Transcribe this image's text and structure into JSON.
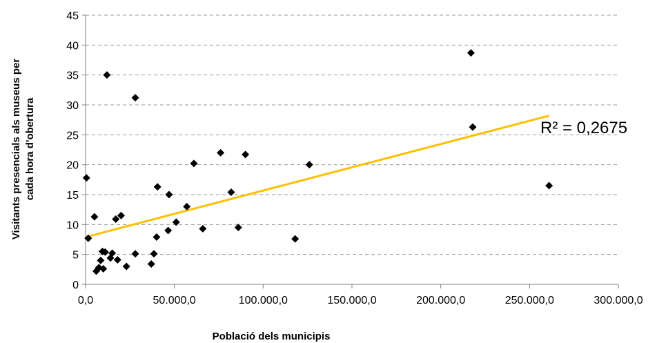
{
  "chart_data": {
    "type": "scatter",
    "title": "",
    "xlabel": "Població dels municipis",
    "ylabel_lines": [
      "Visitants presencials als museus per",
      "cada hora d'obertura"
    ],
    "xlim": [
      0,
      300000
    ],
    "ylim": [
      0,
      45
    ],
    "x_ticks": [
      0,
      50000,
      100000,
      150000,
      200000,
      250000,
      300000
    ],
    "x_tick_labels": [
      "0,0",
      "50.000,0",
      "100.000,0",
      "150.000,0",
      "200.000,0",
      "250.000,0",
      "300.000,0"
    ],
    "y_ticks": [
      0,
      5,
      10,
      15,
      20,
      25,
      30,
      35,
      40,
      45
    ],
    "y_tick_labels": [
      "0",
      "5",
      "10",
      "15",
      "20",
      "25",
      "30",
      "35",
      "40",
      "45"
    ],
    "grid": "horizontal-dashed",
    "marker_color": "#000000",
    "trendline_color": "#FFC000",
    "trendline": {
      "x": [
        0,
        261000
      ],
      "y": [
        7.9,
        28.2
      ]
    },
    "r_squared_label": "R² = 0,2675",
    "points": [
      {
        "x": 500,
        "y": 17.8
      },
      {
        "x": 1500,
        "y": 7.7
      },
      {
        "x": 5000,
        "y": 11.3
      },
      {
        "x": 6000,
        "y": 2.2
      },
      {
        "x": 7500,
        "y": 2.8
      },
      {
        "x": 8500,
        "y": 4.0
      },
      {
        "x": 9500,
        "y": 5.5
      },
      {
        "x": 10000,
        "y": 2.6
      },
      {
        "x": 11000,
        "y": 5.4
      },
      {
        "x": 12000,
        "y": 35.0
      },
      {
        "x": 14000,
        "y": 4.4
      },
      {
        "x": 15000,
        "y": 5.2
      },
      {
        "x": 17000,
        "y": 10.9
      },
      {
        "x": 18000,
        "y": 4.1
      },
      {
        "x": 20000,
        "y": 11.5
      },
      {
        "x": 23000,
        "y": 3.0
      },
      {
        "x": 28000,
        "y": 31.2
      },
      {
        "x": 28000,
        "y": 5.1
      },
      {
        "x": 37000,
        "y": 3.4
      },
      {
        "x": 38500,
        "y": 5.1
      },
      {
        "x": 40000,
        "y": 7.9
      },
      {
        "x": 40500,
        "y": 16.3
      },
      {
        "x": 46500,
        "y": 9.0
      },
      {
        "x": 47000,
        "y": 15.0
      },
      {
        "x": 51000,
        "y": 10.4
      },
      {
        "x": 57000,
        "y": 13.0
      },
      {
        "x": 61000,
        "y": 20.2
      },
      {
        "x": 66000,
        "y": 9.3
      },
      {
        "x": 76000,
        "y": 22.0
      },
      {
        "x": 82000,
        "y": 15.4
      },
      {
        "x": 86000,
        "y": 9.5
      },
      {
        "x": 90000,
        "y": 21.7
      },
      {
        "x": 118000,
        "y": 7.6
      },
      {
        "x": 126000,
        "y": 20.0
      },
      {
        "x": 217000,
        "y": 38.7
      },
      {
        "x": 218000,
        "y": 26.3
      },
      {
        "x": 261000,
        "y": 16.5
      }
    ]
  }
}
